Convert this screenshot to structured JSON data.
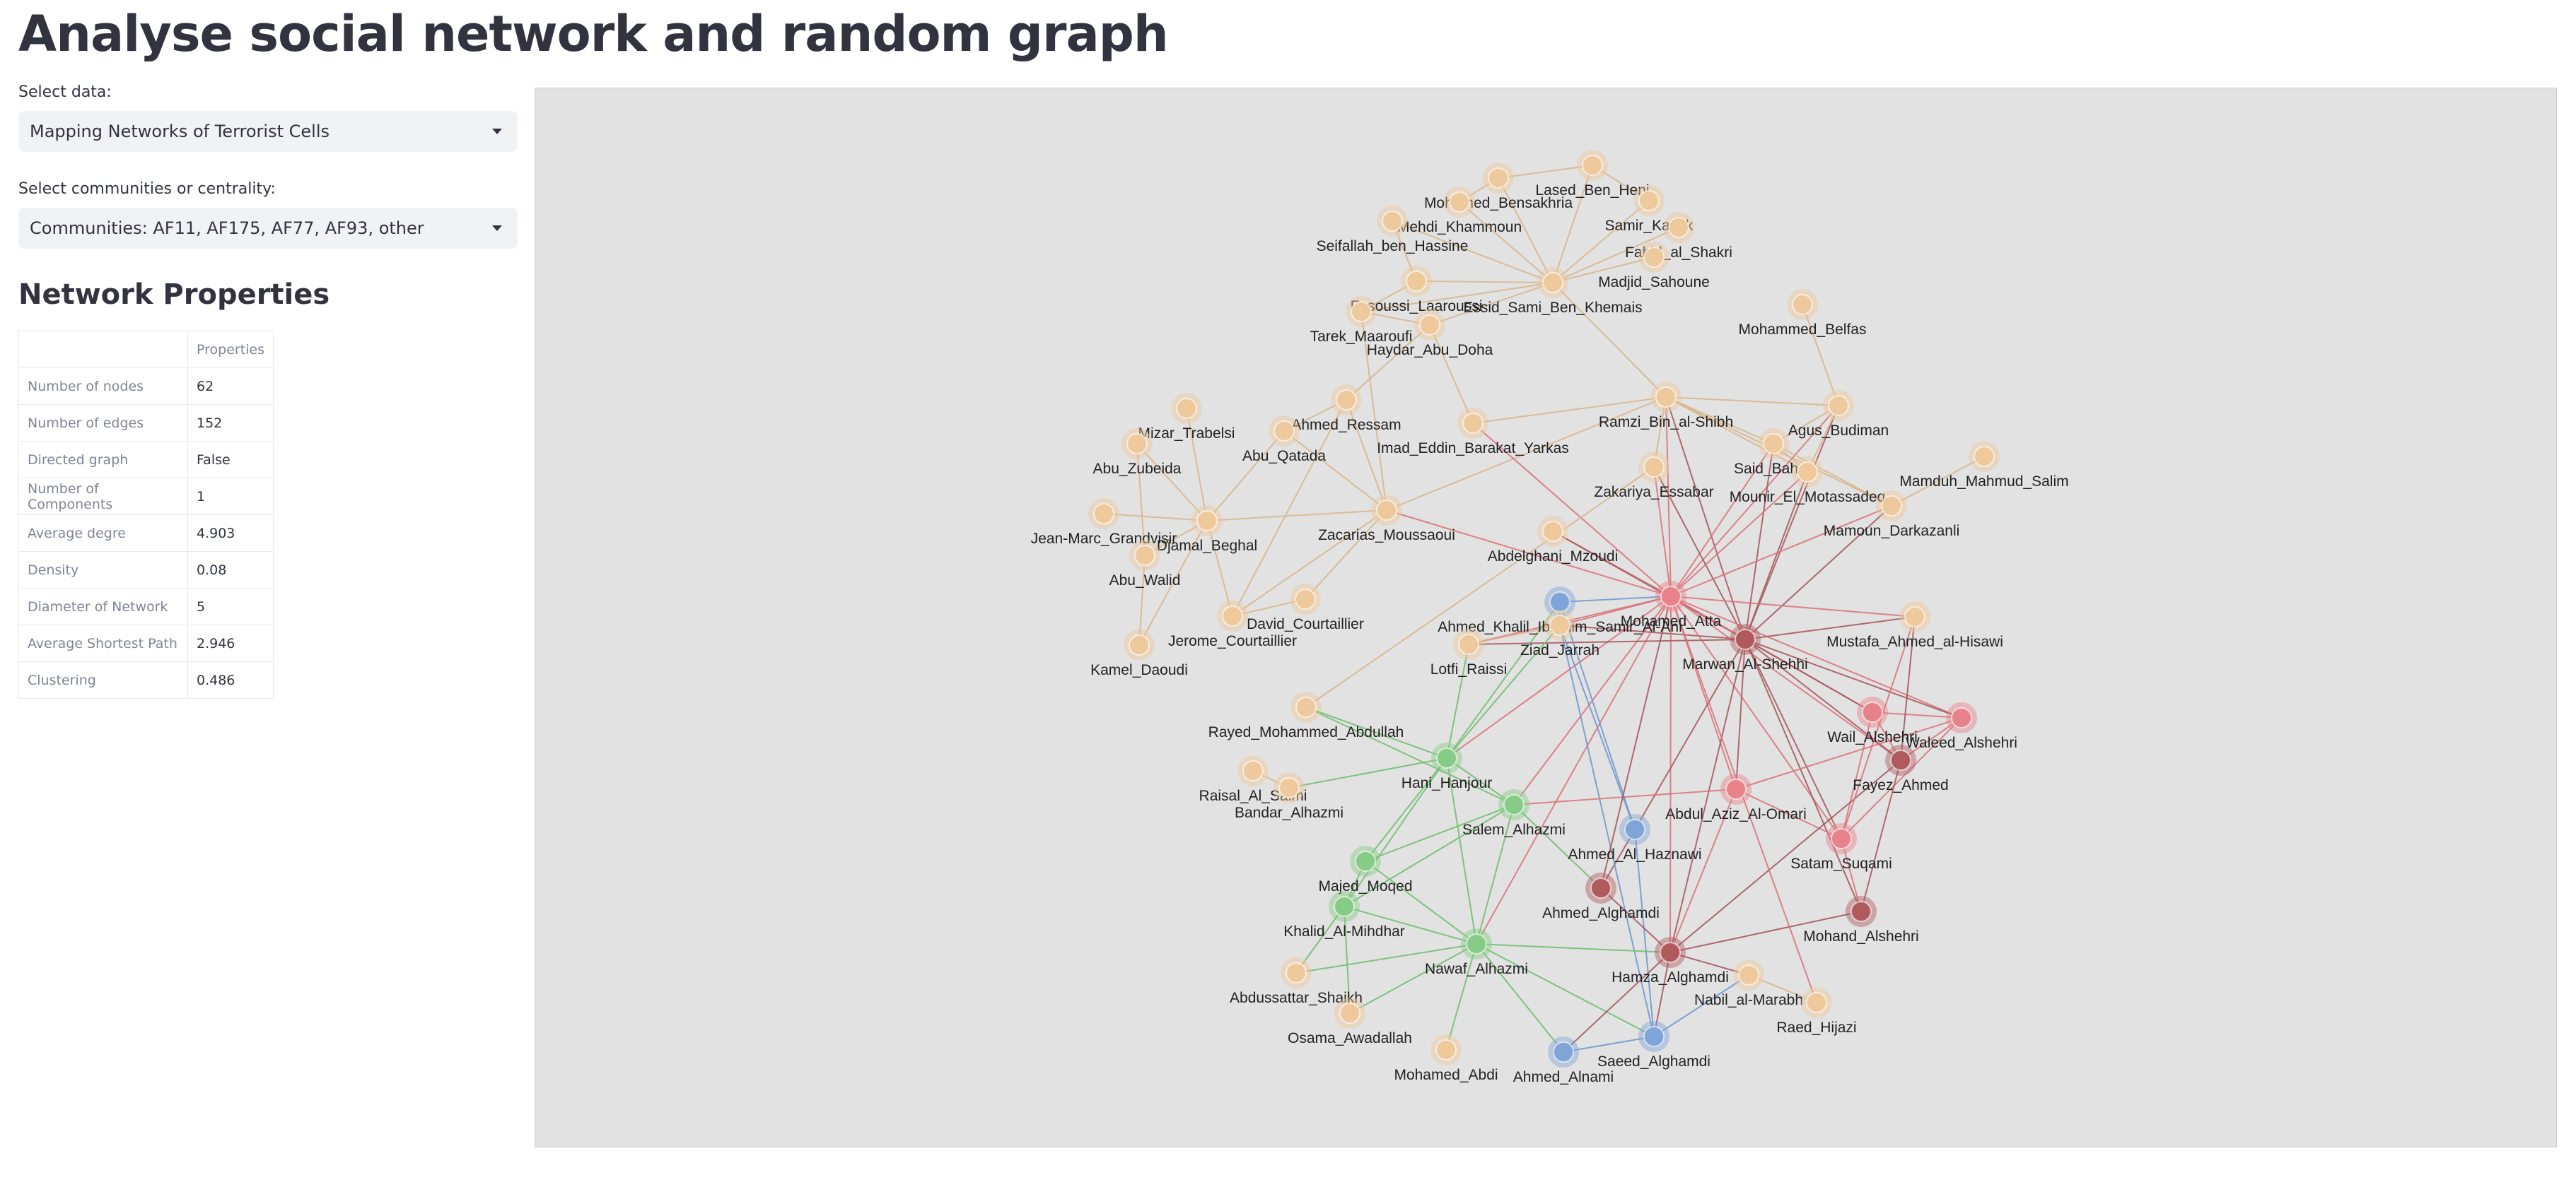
{
  "page": {
    "title": "Analyse social network and random graph"
  },
  "controls": {
    "data_label": "Select data:",
    "data_value": "Mapping Networks of Terrorist Cells",
    "mode_label": "Select communities or centrality:",
    "mode_value": "Communities: AF11, AF175, AF77, AF93, other"
  },
  "properties": {
    "title": "Network Properties",
    "header": [
      "",
      "Properties"
    ],
    "rows": [
      {
        "label": "Number of nodes",
        "value": "62"
      },
      {
        "label": "Number of edges",
        "value": "152"
      },
      {
        "label": "Directed graph",
        "value": "False"
      },
      {
        "label": "Number of Components",
        "value": "1"
      },
      {
        "label": "Average degre",
        "value": "4.903"
      },
      {
        "label": "Density",
        "value": "0.08"
      },
      {
        "label": "Diameter of Network",
        "value": "5"
      },
      {
        "label": "Average Shortest Path",
        "value": "2.946"
      },
      {
        "label": "Clustering",
        "value": "0.486"
      }
    ]
  },
  "graph": {
    "colors": {
      "AF11": "#e8828a",
      "AF175": "#b05a5e",
      "AF77": "#86cc86",
      "AF93": "#7ea4d8",
      "other": "#eec99c"
    },
    "nodes": [
      {
        "id": "Lased_Ben_Heni",
        "group": "other"
      },
      {
        "id": "Mohamed_Bensakhria",
        "group": "other"
      },
      {
        "id": "Mehdi_Khammoun",
        "group": "other"
      },
      {
        "id": "Samir_Kashk",
        "group": "other"
      },
      {
        "id": "Seifallah_ben_Hassine",
        "group": "other"
      },
      {
        "id": "Fahid_al_Shakri",
        "group": "other"
      },
      {
        "id": "Madjid_Sahoune",
        "group": "other"
      },
      {
        "id": "Essoussi_Laaroussi",
        "group": "other"
      },
      {
        "id": "Essid_Sami_Ben_Khemais",
        "group": "other"
      },
      {
        "id": "Tarek_Maaroufi",
        "group": "other"
      },
      {
        "id": "Haydar_Abu_Doha",
        "group": "other"
      },
      {
        "id": "Mohammed_Belfas",
        "group": "other"
      },
      {
        "id": "Mizar_Trabelsi",
        "group": "other"
      },
      {
        "id": "Ahmed_Ressam",
        "group": "other"
      },
      {
        "id": "Imad_Eddin_Barakat_Yarkas",
        "group": "other"
      },
      {
        "id": "Ramzi_Bin_al-Shibh",
        "group": "other"
      },
      {
        "id": "Agus_Budiman",
        "group": "other"
      },
      {
        "id": "Abu_Zubeida",
        "group": "other"
      },
      {
        "id": "Abu_Qatada",
        "group": "other"
      },
      {
        "id": "Said_Bahaji",
        "group": "other"
      },
      {
        "id": "Mamduh_Mahmud_Salim",
        "group": "other"
      },
      {
        "id": "Zakariya_Essabar",
        "group": "other"
      },
      {
        "id": "Mounir_El_Motassadeq",
        "group": "other"
      },
      {
        "id": "Jean-Marc_Grandvisir",
        "group": "other"
      },
      {
        "id": "Djamal_Beghal",
        "group": "other"
      },
      {
        "id": "Zacarias_Moussaoui",
        "group": "other"
      },
      {
        "id": "Mamoun_Darkazanli",
        "group": "other"
      },
      {
        "id": "Abu_Walid",
        "group": "other"
      },
      {
        "id": "Abdelghani_Mzoudi",
        "group": "other"
      },
      {
        "id": "Ahmed_Khalil_Ibrahim_Samir_Al-Ani",
        "group": "AF93"
      },
      {
        "id": "Mohamed_Atta",
        "group": "AF11"
      },
      {
        "id": "Ziad_Jarrah",
        "group": "other"
      },
      {
        "id": "David_Courtaillier",
        "group": "other"
      },
      {
        "id": "Jerome_Courtaillier",
        "group": "other"
      },
      {
        "id": "Marwan_Al-Shehhi",
        "group": "AF175"
      },
      {
        "id": "Mustafa_Ahmed_al-Hisawi",
        "group": "other"
      },
      {
        "id": "Kamel_Daoudi",
        "group": "other"
      },
      {
        "id": "Lotfi_Raissi",
        "group": "other"
      },
      {
        "id": "Rayed_Mohammed_Abdullah",
        "group": "other"
      },
      {
        "id": "Wail_Alshehri",
        "group": "AF11"
      },
      {
        "id": "Waleed_Alshehri",
        "group": "AF11"
      },
      {
        "id": "Hani_Hanjour",
        "group": "AF77"
      },
      {
        "id": "Fayez_Ahmed",
        "group": "AF175"
      },
      {
        "id": "Raisal_Al_Salmi",
        "group": "other"
      },
      {
        "id": "Bandar_Alhazmi",
        "group": "other"
      },
      {
        "id": "Abdul_Aziz_Al-Omari",
        "group": "AF11"
      },
      {
        "id": "Salem_Alhazmi",
        "group": "AF77"
      },
      {
        "id": "Ahmed_Al_Haznawi",
        "group": "AF93"
      },
      {
        "id": "Satam_Suqami",
        "group": "AF11"
      },
      {
        "id": "Majed_Moqed",
        "group": "AF77"
      },
      {
        "id": "Ahmed_Alghamdi",
        "group": "AF175"
      },
      {
        "id": "Mohand_Alshehri",
        "group": "AF175"
      },
      {
        "id": "Khalid_Al-Mihdhar",
        "group": "AF77"
      },
      {
        "id": "Nawaf_Alhazmi",
        "group": "AF77"
      },
      {
        "id": "Hamza_Alghamdi",
        "group": "AF175"
      },
      {
        "id": "Abdussattar_Shaikh",
        "group": "other"
      },
      {
        "id": "Nabil_al-Marabh",
        "group": "other"
      },
      {
        "id": "Osama_Awadallah",
        "group": "other"
      },
      {
        "id": "Raed_Hijazi",
        "group": "other"
      },
      {
        "id": "Mohamed_Abdi",
        "group": "other"
      },
      {
        "id": "Ahmed_Alnami",
        "group": "AF93"
      },
      {
        "id": "Saeed_Alghamdi",
        "group": "AF93"
      }
    ]
  }
}
